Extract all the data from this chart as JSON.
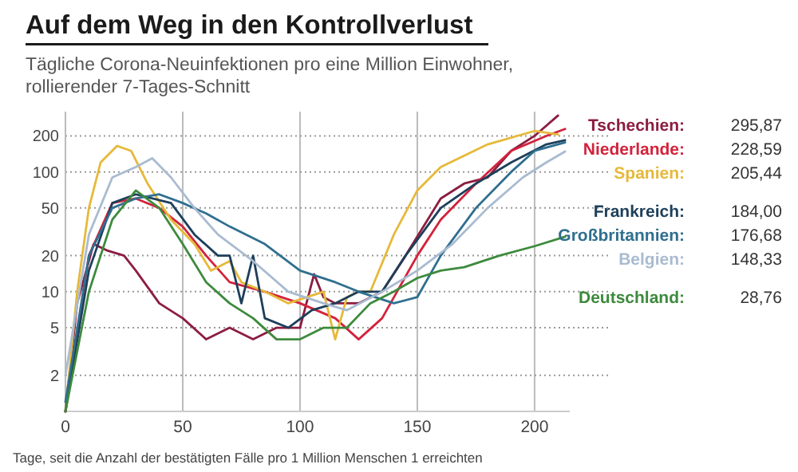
{
  "chart_data": {
    "type": "line",
    "title": "Auf dem Weg in den Kontrollverlust",
    "subtitle": "Tägliche Corona-Neuinfektionen pro eine Million Einwohner,\nrollierender 7-Tages-Schnitt",
    "xlabel": "Tage, seit die Anzahl der bestätigten Fälle pro 1 Million Menschen 1 erreichten",
    "log": "y",
    "grid": true,
    "xlim": [
      0,
      215
    ],
    "xticks": [
      0,
      50,
      100,
      150,
      200
    ],
    "ylim": [
      1,
      300
    ],
    "yticks": [
      2,
      5,
      10,
      20,
      50,
      100,
      200
    ],
    "series": [
      {
        "name": "Tschechien: 295,87",
        "color": "#8c1d40",
        "x": [
          0,
          5,
          12,
          18,
          25,
          30,
          40,
          50,
          60,
          70,
          80,
          90,
          100,
          106,
          110,
          115,
          125,
          135,
          145,
          160,
          170,
          180,
          190,
          200,
          210
        ],
        "values": [
          1,
          8,
          25,
          22,
          20,
          15,
          8,
          6,
          4,
          5,
          4,
          5,
          5,
          14,
          9,
          8,
          8,
          10,
          20,
          60,
          80,
          90,
          150,
          200,
          295.87
        ]
      },
      {
        "name": "Niederlande: 228,59",
        "color": "#d2233c",
        "x": [
          0,
          10,
          20,
          30,
          40,
          50,
          60,
          70,
          85,
          100,
          115,
          125,
          135,
          150,
          160,
          175,
          190,
          205,
          213
        ],
        "values": [
          1,
          20,
          55,
          60,
          50,
          35,
          20,
          12,
          10,
          8,
          6,
          4,
          6,
          20,
          40,
          80,
          150,
          200,
          228.59
        ]
      },
      {
        "name": "Spanien: 205,44",
        "color": "#e6b93a",
        "x": [
          0,
          5,
          10,
          15,
          22,
          28,
          35,
          45,
          55,
          62,
          70,
          75,
          85,
          95,
          110,
          115,
          120,
          125,
          130,
          140,
          150,
          160,
          180,
          200,
          210
        ],
        "values": [
          1,
          10,
          50,
          120,
          165,
          150,
          80,
          40,
          25,
          15,
          18,
          12,
          10,
          8,
          10,
          4,
          9,
          10,
          10,
          30,
          70,
          110,
          170,
          220,
          205.44
        ]
      },
      {
        "name": "Frankreich: 184,00",
        "color": "#1d3f5a",
        "x": [
          0,
          10,
          20,
          30,
          45,
          55,
          65,
          70,
          75,
          80,
          85,
          95,
          105,
          115,
          125,
          135,
          145,
          160,
          175,
          190,
          205,
          213
        ],
        "values": [
          1,
          15,
          55,
          65,
          55,
          30,
          20,
          20,
          8,
          20,
          6,
          5,
          7,
          8,
          10,
          10,
          20,
          50,
          80,
          120,
          170,
          184
        ]
      },
      {
        "name": "Großbritannien: 176,68",
        "color": "#2f6f8f",
        "x": [
          0,
          10,
          20,
          30,
          40,
          50,
          60,
          70,
          85,
          100,
          115,
          125,
          140,
          150,
          160,
          175,
          190,
          200,
          213
        ],
        "values": [
          1.2,
          20,
          50,
          60,
          65,
          55,
          45,
          35,
          25,
          15,
          12,
          10,
          8,
          9,
          20,
          50,
          100,
          150,
          176.68
        ]
      },
      {
        "name": "Belgien: 148,33",
        "color": "#a9bbd0",
        "x": [
          0,
          10,
          20,
          30,
          37,
          45,
          55,
          65,
          80,
          95,
          110,
          120,
          135,
          150,
          165,
          180,
          195,
          205,
          213
        ],
        "values": [
          2,
          30,
          90,
          110,
          130,
          90,
          50,
          30,
          18,
          10,
          8,
          7,
          10,
          15,
          25,
          50,
          90,
          120,
          148.33
        ]
      },
      {
        "name": "Deutschland: 28,76",
        "color": "#3d8a3d",
        "x": [
          0,
          10,
          20,
          30,
          40,
          50,
          60,
          70,
          80,
          90,
          100,
          110,
          120,
          130,
          140,
          150,
          160,
          170,
          185,
          200,
          213
        ],
        "values": [
          1,
          10,
          40,
          70,
          50,
          25,
          12,
          8,
          6,
          4,
          4,
          5,
          5,
          8,
          10,
          13,
          15,
          16,
          20,
          24,
          28.76
        ]
      }
    ]
  }
}
